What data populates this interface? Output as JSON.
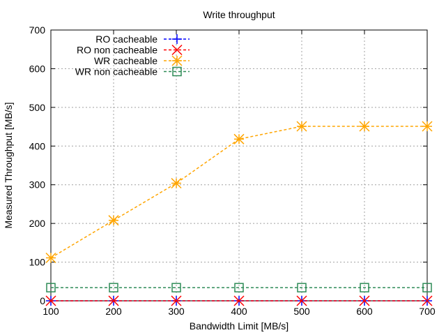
{
  "chart_data": {
    "type": "line",
    "title": "Write throughput",
    "xlabel": "Bandwidth Limit [MB/s]",
    "ylabel": "Measured Throughput [MB/s]",
    "xlim": [
      100,
      700
    ],
    "ylim": [
      0,
      700
    ],
    "xticks": [
      100,
      200,
      300,
      400,
      500,
      600,
      700
    ],
    "yticks": [
      0,
      100,
      200,
      300,
      400,
      500,
      600,
      700
    ],
    "grid": true,
    "legend_position": "top-left",
    "x": [
      100,
      200,
      300,
      400,
      500,
      600,
      700
    ],
    "series": [
      {
        "name": "RO cacheable",
        "color": "#0000ff",
        "marker": "plus",
        "values": [
          0,
          0,
          0,
          0,
          0,
          0,
          0
        ]
      },
      {
        "name": "RO non cacheable",
        "color": "#ff0000",
        "marker": "cross",
        "values": [
          0,
          0,
          0,
          0,
          0,
          0,
          0
        ]
      },
      {
        "name": "WR cacheable",
        "color": "#ffa500",
        "marker": "star",
        "values": [
          111,
          208,
          304,
          418,
          451,
          451,
          451
        ]
      },
      {
        "name": "WR non cacheable",
        "color": "#2e8b57",
        "marker": "square",
        "values": [
          34,
          34,
          34,
          34,
          34,
          34,
          34
        ]
      }
    ]
  }
}
